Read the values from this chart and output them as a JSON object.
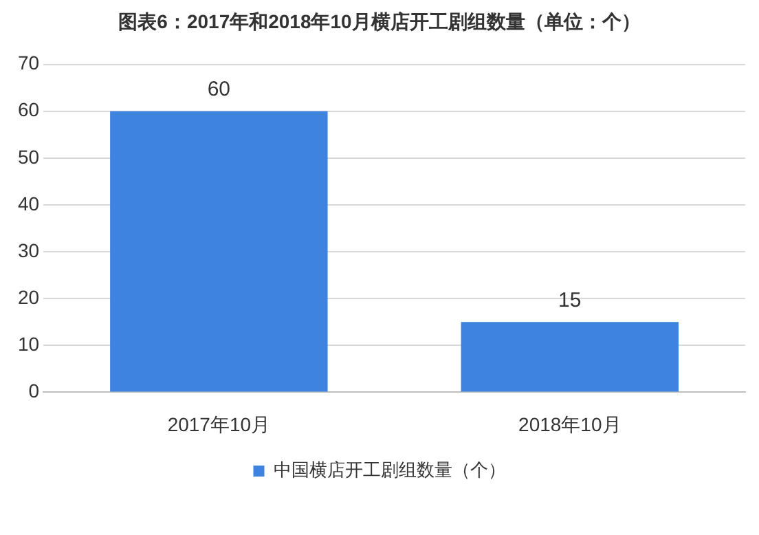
{
  "chart_data": {
    "type": "bar",
    "title": "图表6：2017年和2018年10月横店开工剧组数量（单位：个）",
    "categories": [
      "2017年10月",
      "2018年10月"
    ],
    "series": [
      {
        "name": "中国横店开工剧组数量（个）",
        "color": "#3f83e0",
        "values": [
          60,
          15
        ]
      }
    ],
    "ylim": [
      0,
      70
    ],
    "yticks": [
      0,
      10,
      20,
      30,
      40,
      50,
      60,
      70
    ],
    "grid": "y",
    "legend": "bottom",
    "data_labels": true
  }
}
